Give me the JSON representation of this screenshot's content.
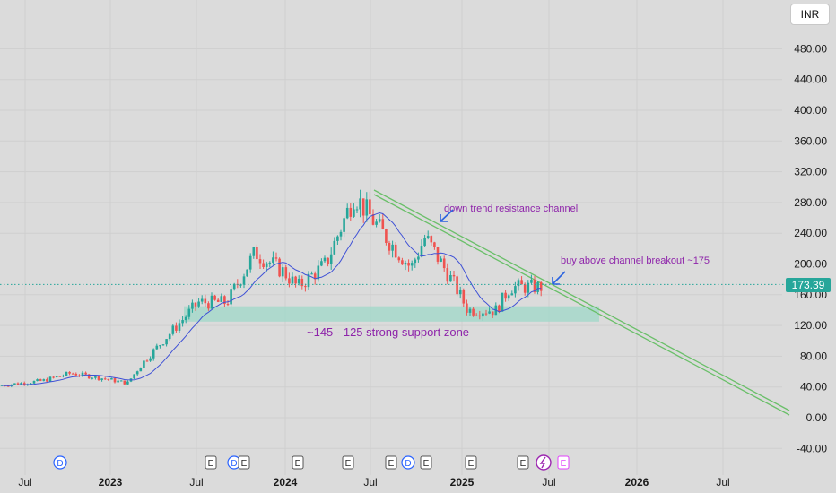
{
  "currency_button": "INR",
  "chart_data": {
    "type": "candlestick",
    "y_axis": {
      "range": [
        -50,
        510
      ],
      "ticks": [
        "480.00",
        "440.00",
        "400.00",
        "360.00",
        "320.00",
        "280.00",
        "240.00",
        "200.00",
        "160.00",
        "120.00",
        "80.00",
        "40.00",
        "0.00",
        "-40.00"
      ]
    },
    "x_axis": {
      "ticks": [
        {
          "label": "Jul",
          "bold": false
        },
        {
          "label": "2023",
          "bold": true
        },
        {
          "label": "Jul",
          "bold": false
        },
        {
          "label": "2024",
          "bold": true
        },
        {
          "label": "Jul",
          "bold": false
        },
        {
          "label": "2025",
          "bold": true
        },
        {
          "label": "Jul",
          "bold": false
        },
        {
          "label": "2026",
          "bold": true
        },
        {
          "label": "Jul",
          "bold": false
        }
      ]
    },
    "last_price": "173.39",
    "series": [
      {
        "x": "2022-06",
        "close": 42
      },
      {
        "x": "2022-09",
        "close": 48
      },
      {
        "x": "2022-11",
        "close": 58
      },
      {
        "x": "2023-01",
        "close": 52
      },
      {
        "x": "2023-03",
        "close": 45
      },
      {
        "x": "2023-04",
        "close": 70
      },
      {
        "x": "2023-06",
        "close": 110
      },
      {
        "x": "2023-08",
        "close": 150
      },
      {
        "x": "2023-10",
        "close": 150
      },
      {
        "x": "2023-12",
        "close": 215
      },
      {
        "x": "2024-02",
        "close": 190
      },
      {
        "x": "2024-03",
        "close": 170
      },
      {
        "x": "2024-05",
        "close": 200
      },
      {
        "x": "2024-07",
        "close": 290
      },
      {
        "x": "2024-09",
        "close": 240
      },
      {
        "x": "2024-11",
        "close": 195
      },
      {
        "x": "2024-12",
        "close": 235
      },
      {
        "x": "2025-02",
        "close": 175
      },
      {
        "x": "2025-03",
        "close": 140
      },
      {
        "x": "2025-05",
        "close": 140
      },
      {
        "x": "2025-06",
        "close": 170
      }
    ],
    "moving_average_color": "#3f51d6",
    "up_color": "#26a69a",
    "down_color": "#ef5350",
    "annotations": [
      {
        "text": "down trend resistance channel"
      },
      {
        "text": "buy above channel breakout ~175"
      },
      {
        "text": "~145 - 125 strong support zone"
      }
    ],
    "support_zone": [
      125,
      145
    ],
    "event_markers": [
      "D",
      "E",
      "D",
      "E",
      "E",
      "E",
      "E",
      "D",
      "E",
      "E",
      "E",
      "E"
    ]
  }
}
